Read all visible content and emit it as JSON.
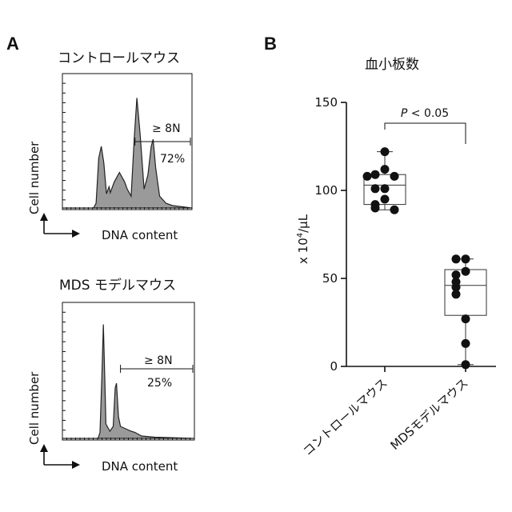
{
  "panel_a": {
    "letter": "A",
    "histograms": [
      {
        "title": "コントロールマウス",
        "ylabel": "Cell number",
        "xlabel": "DNA content",
        "gate_label": "≥ 8N",
        "gate_percent": "72%",
        "gate_range": [
          0.56,
          1.0
        ],
        "profile": [
          [
            0.0,
            0
          ],
          [
            0.24,
            0
          ],
          [
            0.26,
            0.04
          ],
          [
            0.28,
            0.42
          ],
          [
            0.3,
            0.52
          ],
          [
            0.32,
            0.38
          ],
          [
            0.34,
            0.12
          ],
          [
            0.36,
            0.18
          ],
          [
            0.37,
            0.13
          ],
          [
            0.4,
            0.22
          ],
          [
            0.44,
            0.3
          ],
          [
            0.48,
            0.22
          ],
          [
            0.5,
            0.16
          ],
          [
            0.53,
            0.1
          ],
          [
            0.555,
            0.6
          ],
          [
            0.575,
            0.93
          ],
          [
            0.6,
            0.62
          ],
          [
            0.63,
            0.16
          ],
          [
            0.66,
            0.28
          ],
          [
            0.685,
            0.52
          ],
          [
            0.7,
            0.58
          ],
          [
            0.72,
            0.34
          ],
          [
            0.75,
            0.1
          ],
          [
            0.8,
            0.04
          ],
          [
            0.85,
            0.02
          ],
          [
            1.0,
            0
          ]
        ]
      },
      {
        "title": "MDS モデルマウス",
        "ylabel": "Cell number",
        "xlabel": "DNA content",
        "gate_label": "≥ 8N",
        "gate_percent": "25%",
        "gate_range": [
          0.44,
          1.0
        ],
        "profile": [
          [
            0.0,
            0
          ],
          [
            0.27,
            0
          ],
          [
            0.285,
            0.05
          ],
          [
            0.3,
            0.55
          ],
          [
            0.31,
            0.95
          ],
          [
            0.32,
            0.55
          ],
          [
            0.33,
            0.12
          ],
          [
            0.36,
            0.06
          ],
          [
            0.385,
            0.1
          ],
          [
            0.4,
            0.42
          ],
          [
            0.41,
            0.46
          ],
          [
            0.425,
            0.18
          ],
          [
            0.44,
            0.1
          ],
          [
            0.48,
            0.08
          ],
          [
            0.52,
            0.06
          ],
          [
            0.55,
            0.05
          ],
          [
            0.6,
            0.02
          ],
          [
            0.7,
            0.01
          ],
          [
            1.0,
            0
          ]
        ]
      }
    ]
  },
  "panel_b": {
    "letter": "B",
    "chart_data": {
      "type": "box",
      "title": "血小板数",
      "ylabel_prefix": "x 10",
      "ylabel_exp": "4",
      "ylabel_suffix": "/μL",
      "ylim": [
        0,
        150
      ],
      "yticks": [
        "0",
        "50",
        "100",
        "150"
      ],
      "categories": [
        "コントロールマウス",
        "MDSモデルマウス"
      ],
      "series": [
        {
          "values": [
            122,
            112,
            109,
            108,
            108,
            101,
            101,
            95,
            92,
            90,
            89
          ],
          "box": {
            "min": 89,
            "q1": 92,
            "median": 103,
            "q3": 109,
            "max": 122
          }
        },
        {
          "values": [
            61,
            61,
            54,
            52,
            48,
            45,
            41,
            27,
            13,
            1
          ],
          "box": {
            "min": 1,
            "q1": 29,
            "median": 46,
            "q3": 55,
            "max": 61
          }
        }
      ],
      "significance": {
        "italic": "P",
        "text": " < 0.05"
      }
    }
  }
}
